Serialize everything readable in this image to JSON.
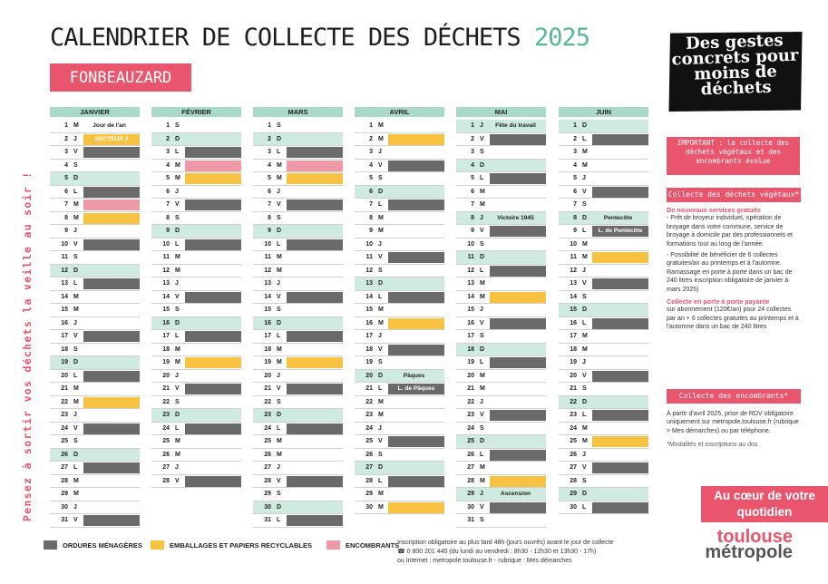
{
  "title": {
    "main": "CALENDRIER DE COLLECTE DES DÉCHETS",
    "year": "2025"
  },
  "commune": "FONBEAUZARD",
  "slogan": "Des gestes concrets pour moins de déchets",
  "vertical_text": "Pensez à sortir vos déchets la veille au soir !",
  "months": [
    {
      "name": "JANVIER",
      "days": [
        [
          "1",
          "M",
          "",
          "Jour de l'an",
          0
        ],
        [
          "2",
          "J",
          "y",
          "SECTEUR 2",
          0
        ],
        [
          "3",
          "V",
          "g",
          "",
          0
        ],
        [
          "4",
          "S",
          "",
          "",
          0
        ],
        [
          "5",
          "D",
          "",
          "",
          1
        ],
        [
          "6",
          "L",
          "g",
          "",
          0
        ],
        [
          "7",
          "M",
          "p",
          "",
          0
        ],
        [
          "8",
          "M",
          "y",
          "",
          0
        ],
        [
          "9",
          "J",
          "",
          "",
          0
        ],
        [
          "10",
          "V",
          "g",
          "",
          0
        ],
        [
          "11",
          "S",
          "",
          "",
          0
        ],
        [
          "12",
          "D",
          "",
          "",
          1
        ],
        [
          "13",
          "L",
          "g",
          "",
          0
        ],
        [
          "14",
          "M",
          "",
          "",
          0
        ],
        [
          "15",
          "M",
          "",
          "",
          0
        ],
        [
          "16",
          "J",
          "",
          "",
          0
        ],
        [
          "17",
          "V",
          "g",
          "",
          0
        ],
        [
          "18",
          "S",
          "",
          "",
          0
        ],
        [
          "19",
          "D",
          "",
          "",
          1
        ],
        [
          "20",
          "L",
          "g",
          "",
          0
        ],
        [
          "21",
          "M",
          "",
          "",
          0
        ],
        [
          "22",
          "M",
          "y",
          "",
          0
        ],
        [
          "23",
          "J",
          "",
          "",
          0
        ],
        [
          "24",
          "V",
          "g",
          "",
          0
        ],
        [
          "25",
          "S",
          "",
          "",
          0
        ],
        [
          "26",
          "D",
          "",
          "",
          1
        ],
        [
          "27",
          "L",
          "g",
          "",
          0
        ],
        [
          "28",
          "M",
          "",
          "",
          0
        ],
        [
          "29",
          "M",
          "",
          "",
          0
        ],
        [
          "30",
          "J",
          "",
          "",
          0
        ],
        [
          "31",
          "V",
          "g",
          "",
          0
        ]
      ]
    },
    {
      "name": "FÉVRIER",
      "days": [
        [
          "1",
          "S",
          "",
          "",
          0
        ],
        [
          "2",
          "D",
          "",
          "",
          1
        ],
        [
          "3",
          "L",
          "g",
          "",
          0
        ],
        [
          "4",
          "M",
          "p",
          "",
          0
        ],
        [
          "5",
          "M",
          "y",
          "",
          0
        ],
        [
          "6",
          "J",
          "",
          "",
          0
        ],
        [
          "7",
          "V",
          "g",
          "",
          0
        ],
        [
          "8",
          "S",
          "",
          "",
          0
        ],
        [
          "9",
          "D",
          "",
          "",
          1
        ],
        [
          "10",
          "L",
          "g",
          "",
          0
        ],
        [
          "11",
          "M",
          "",
          "",
          0
        ],
        [
          "12",
          "M",
          "",
          "",
          0
        ],
        [
          "13",
          "J",
          "",
          "",
          0
        ],
        [
          "14",
          "V",
          "g",
          "",
          0
        ],
        [
          "15",
          "S",
          "",
          "",
          0
        ],
        [
          "16",
          "D",
          "",
          "",
          1
        ],
        [
          "17",
          "L",
          "g",
          "",
          0
        ],
        [
          "18",
          "M",
          "",
          "",
          0
        ],
        [
          "19",
          "M",
          "y",
          "",
          0
        ],
        [
          "20",
          "J",
          "",
          "",
          0
        ],
        [
          "21",
          "V",
          "g",
          "",
          0
        ],
        [
          "22",
          "S",
          "",
          "",
          0
        ],
        [
          "23",
          "D",
          "",
          "",
          1
        ],
        [
          "24",
          "L",
          "g",
          "",
          0
        ],
        [
          "25",
          "M",
          "",
          "",
          0
        ],
        [
          "26",
          "M",
          "",
          "",
          0
        ],
        [
          "27",
          "J",
          "",
          "",
          0
        ],
        [
          "28",
          "V",
          "g",
          "",
          0
        ]
      ]
    },
    {
      "name": "MARS",
      "days": [
        [
          "1",
          "S",
          "",
          "",
          0
        ],
        [
          "2",
          "D",
          "",
          "",
          1
        ],
        [
          "3",
          "L",
          "g",
          "",
          0
        ],
        [
          "4",
          "M",
          "p",
          "",
          0
        ],
        [
          "5",
          "M",
          "y",
          "",
          0
        ],
        [
          "6",
          "J",
          "",
          "",
          0
        ],
        [
          "7",
          "V",
          "g",
          "",
          0
        ],
        [
          "8",
          "S",
          "",
          "",
          0
        ],
        [
          "9",
          "D",
          "",
          "",
          1
        ],
        [
          "10",
          "L",
          "g",
          "",
          0
        ],
        [
          "11",
          "M",
          "",
          "",
          0
        ],
        [
          "12",
          "M",
          "",
          "",
          0
        ],
        [
          "13",
          "J",
          "",
          "",
          0
        ],
        [
          "14",
          "V",
          "g",
          "",
          0
        ],
        [
          "15",
          "S",
          "",
          "",
          0
        ],
        [
          "16",
          "D",
          "",
          "",
          1
        ],
        [
          "17",
          "L",
          "g",
          "",
          0
        ],
        [
          "18",
          "M",
          "",
          "",
          0
        ],
        [
          "19",
          "M",
          "y",
          "",
          0
        ],
        [
          "20",
          "J",
          "",
          "",
          0
        ],
        [
          "21",
          "V",
          "g",
          "",
          0
        ],
        [
          "22",
          "S",
          "",
          "",
          0
        ],
        [
          "23",
          "D",
          "",
          "",
          1
        ],
        [
          "24",
          "L",
          "g",
          "",
          0
        ],
        [
          "25",
          "M",
          "",
          "",
          0
        ],
        [
          "26",
          "M",
          "",
          "",
          0
        ],
        [
          "27",
          "J",
          "",
          "",
          0
        ],
        [
          "28",
          "V",
          "g",
          "",
          0
        ],
        [
          "29",
          "S",
          "",
          "",
          0
        ],
        [
          "30",
          "D",
          "",
          "",
          1
        ],
        [
          "31",
          "L",
          "g",
          "",
          0
        ]
      ]
    },
    {
      "name": "AVRIL",
      "days": [
        [
          "1",
          "M",
          "",
          "",
          0
        ],
        [
          "2",
          "M",
          "y",
          "",
          0
        ],
        [
          "3",
          "J",
          "",
          "",
          0
        ],
        [
          "4",
          "V",
          "g",
          "",
          0
        ],
        [
          "5",
          "S",
          "",
          "",
          0
        ],
        [
          "6",
          "D",
          "",
          "",
          1
        ],
        [
          "7",
          "L",
          "g",
          "",
          0
        ],
        [
          "8",
          "M",
          "",
          "",
          0
        ],
        [
          "9",
          "M",
          "",
          "",
          0
        ],
        [
          "10",
          "J",
          "",
          "",
          0
        ],
        [
          "11",
          "V",
          "g",
          "",
          0
        ],
        [
          "12",
          "S",
          "",
          "",
          0
        ],
        [
          "13",
          "D",
          "",
          "",
          1
        ],
        [
          "14",
          "L",
          "g",
          "",
          0
        ],
        [
          "15",
          "M",
          "",
          "",
          0
        ],
        [
          "16",
          "M",
          "y",
          "",
          0
        ],
        [
          "17",
          "J",
          "",
          "",
          0
        ],
        [
          "18",
          "V",
          "g",
          "",
          0
        ],
        [
          "19",
          "S",
          "",
          "",
          0
        ],
        [
          "20",
          "D",
          "",
          "Pâques",
          1
        ],
        [
          "21",
          "L",
          "g",
          "L. de Pâques",
          0
        ],
        [
          "22",
          "M",
          "",
          "",
          0
        ],
        [
          "23",
          "M",
          "",
          "",
          0
        ],
        [
          "24",
          "J",
          "",
          "",
          0
        ],
        [
          "25",
          "V",
          "g",
          "",
          0
        ],
        [
          "26",
          "S",
          "",
          "",
          0
        ],
        [
          "27",
          "D",
          "",
          "",
          1
        ],
        [
          "28",
          "L",
          "g",
          "",
          0
        ],
        [
          "29",
          "M",
          "",
          "",
          0
        ],
        [
          "30",
          "M",
          "y",
          "",
          0
        ]
      ]
    },
    {
      "name": "MAI",
      "days": [
        [
          "1",
          "J",
          "",
          "Fête du travail",
          1
        ],
        [
          "2",
          "V",
          "g",
          "",
          0
        ],
        [
          "3",
          "S",
          "",
          "",
          0
        ],
        [
          "4",
          "D",
          "",
          "",
          1
        ],
        [
          "5",
          "L",
          "g",
          "",
          0
        ],
        [
          "6",
          "M",
          "",
          "",
          0
        ],
        [
          "7",
          "M",
          "",
          "",
          0
        ],
        [
          "8",
          "J",
          "",
          "Victoire 1945",
          1
        ],
        [
          "9",
          "V",
          "g",
          "",
          0
        ],
        [
          "10",
          "S",
          "",
          "",
          0
        ],
        [
          "11",
          "D",
          "",
          "",
          1
        ],
        [
          "12",
          "L",
          "g",
          "",
          0
        ],
        [
          "13",
          "M",
          "",
          "",
          0
        ],
        [
          "14",
          "M",
          "y",
          "",
          0
        ],
        [
          "15",
          "J",
          "",
          "",
          0
        ],
        [
          "16",
          "V",
          "g",
          "",
          0
        ],
        [
          "17",
          "S",
          "",
          "",
          0
        ],
        [
          "18",
          "D",
          "",
          "",
          1
        ],
        [
          "19",
          "L",
          "g",
          "",
          0
        ],
        [
          "20",
          "M",
          "",
          "",
          0
        ],
        [
          "21",
          "M",
          "",
          "",
          0
        ],
        [
          "22",
          "J",
          "",
          "",
          0
        ],
        [
          "23",
          "V",
          "g",
          "",
          0
        ],
        [
          "24",
          "S",
          "",
          "",
          0
        ],
        [
          "25",
          "D",
          "",
          "",
          1
        ],
        [
          "26",
          "L",
          "g",
          "",
          0
        ],
        [
          "27",
          "M",
          "",
          "",
          0
        ],
        [
          "28",
          "M",
          "y",
          "",
          0
        ],
        [
          "29",
          "J",
          "",
          "Ascension",
          1
        ],
        [
          "30",
          "V",
          "g",
          "",
          0
        ],
        [
          "31",
          "S",
          "",
          "",
          0
        ]
      ]
    },
    {
      "name": "JUIN",
      "days": [
        [
          "1",
          "D",
          "",
          "",
          1
        ],
        [
          "2",
          "L",
          "g",
          "",
          0
        ],
        [
          "3",
          "M",
          "",
          "",
          0
        ],
        [
          "4",
          "M",
          "",
          "",
          0
        ],
        [
          "5",
          "J",
          "",
          "",
          0
        ],
        [
          "6",
          "V",
          "g",
          "",
          0
        ],
        [
          "7",
          "S",
          "",
          "",
          0
        ],
        [
          "8",
          "D",
          "",
          "Pentecôte",
          1
        ],
        [
          "9",
          "L",
          "g",
          "L. de Pentecôte",
          0
        ],
        [
          "10",
          "M",
          "",
          "",
          0
        ],
        [
          "11",
          "M",
          "y",
          "",
          0
        ],
        [
          "12",
          "J",
          "",
          "",
          0
        ],
        [
          "13",
          "V",
          "g",
          "",
          0
        ],
        [
          "14",
          "S",
          "",
          "",
          0
        ],
        [
          "15",
          "D",
          "",
          "",
          1
        ],
        [
          "16",
          "L",
          "g",
          "",
          0
        ],
        [
          "17",
          "M",
          "",
          "",
          0
        ],
        [
          "18",
          "M",
          "",
          "",
          0
        ],
        [
          "19",
          "J",
          "",
          "",
          0
        ],
        [
          "20",
          "V",
          "g",
          "",
          0
        ],
        [
          "21",
          "S",
          "",
          "",
          0
        ],
        [
          "22",
          "D",
          "",
          "",
          1
        ],
        [
          "23",
          "L",
          "g",
          "",
          0
        ],
        [
          "24",
          "M",
          "",
          "",
          0
        ],
        [
          "25",
          "M",
          "y",
          "",
          0
        ],
        [
          "26",
          "J",
          "",
          "",
          0
        ],
        [
          "27",
          "V",
          "g",
          "",
          0
        ],
        [
          "28",
          "S",
          "",
          "",
          0
        ],
        [
          "29",
          "D",
          "",
          "",
          1
        ],
        [
          "30",
          "L",
          "g",
          "",
          0
        ]
      ]
    }
  ],
  "important": "IMPORTANT : la collecte des déchets végétaux et des encombrants évolue",
  "vegetaux": {
    "title": "Collecte des déchets végétaux*",
    "h1": "De nouveaux services gratuits",
    "p1": "- Prêt de broyeur individuel, opération de broyage dans votre commune, service de broyage à domicile par des professionnels et formations tout au long de l'année.",
    "p2": "- Possibilité de bénéficier de 6 collectes gratuites/an au printemps et à l'automne. Ramassage en porte à porte dans un bac de 240 litres inscription obligatoire de janvier à mars 2025)",
    "h2": "Collecte en porte à porte payante",
    "p3": "sur abonnement (120€/an) pour 24 collectes par an + 6 collectes gratuites au printemps et à l'automne dans un bac de 240 litres"
  },
  "encombrants": {
    "title": "Collecte des encombrants*",
    "p1": "À partir d'avril 2025, prise de RDV obligatoire uniquement sur metropole.toulouse.fr (rubrique > Mes démarches) ou par téléphone.",
    "note": "*Modalités et inscriptions au dos"
  },
  "slogan2": "Au cœur de votre quotidien",
  "logo": {
    "l1": "toulouse",
    "l2": "métropole"
  },
  "legend": [
    {
      "label": "ORDURES MÉNAGÈRES",
      "color": "#6a6a6a"
    },
    {
      "label": "EMBALLAGES ET PAPIERS RECYCLABLES",
      "color": "#f7c242"
    },
    {
      "label": "ENCOMBRANTS",
      "color": "#ee9aa6"
    }
  ],
  "contact": {
    "l1": "Inscription obligatoire au plus tard 48h (jours ouvrés) avant le jour de collecte",
    "l2": "☎ 0 800 201 440 (du lundi au vendredi : 8h30 - 12h30 et 13h30 - 17h)",
    "l3": "ou Internet : metropole.toulouse.fr - rubrique : Mes démarches"
  }
}
